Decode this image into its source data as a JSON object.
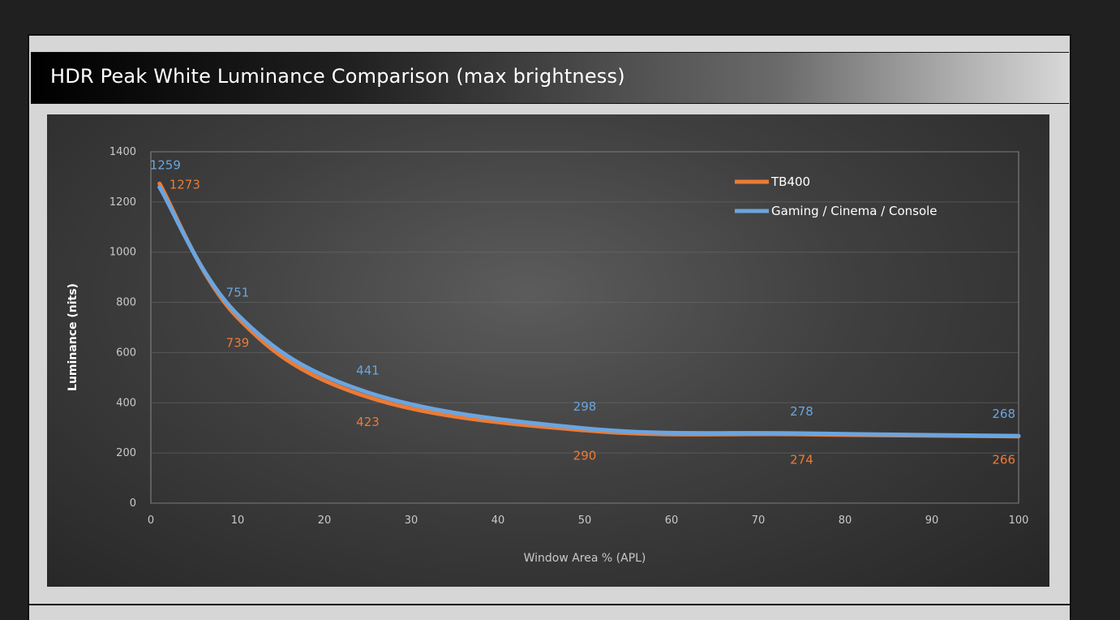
{
  "page": {
    "title": "HDR Peak White Luminance Comparison (max brightness)"
  },
  "colors": {
    "tb400": "#ec7b35",
    "gaming": "#6aa5e0",
    "text": "#c9c9c9"
  },
  "chart_data": {
    "type": "line",
    "title": "HDR Peak White Luminance Comparison (max brightness)",
    "xlabel": "Window Area % (APL)",
    "ylabel": "Luminance (nits)",
    "xlim": [
      0,
      100
    ],
    "ylim": [
      0,
      1400
    ],
    "x_ticks": [
      "0",
      "10",
      "20",
      "30",
      "40",
      "50",
      "60",
      "70",
      "80",
      "90",
      "100"
    ],
    "y_ticks": [
      "0",
      "200",
      "400",
      "600",
      "800",
      "1000",
      "1200",
      "1400"
    ],
    "grid": true,
    "legend_position": "top-right",
    "series": [
      {
        "name": "TB400",
        "color": "#ec7b35",
        "x": [
          1,
          10,
          25,
          50,
          75,
          100
        ],
        "y": [
          1273,
          739,
          423,
          290,
          274,
          266
        ],
        "labels": [
          "1273",
          "739",
          "423",
          "290",
          "274",
          "266"
        ]
      },
      {
        "name": "Gaming / Cinema / Console",
        "color": "#6aa5e0",
        "x": [
          1,
          10,
          25,
          50,
          75,
          100
        ],
        "y": [
          1259,
          751,
          441,
          298,
          278,
          268
        ],
        "labels": [
          "1259",
          "751",
          "441",
          "298",
          "278",
          "268"
        ]
      }
    ]
  }
}
